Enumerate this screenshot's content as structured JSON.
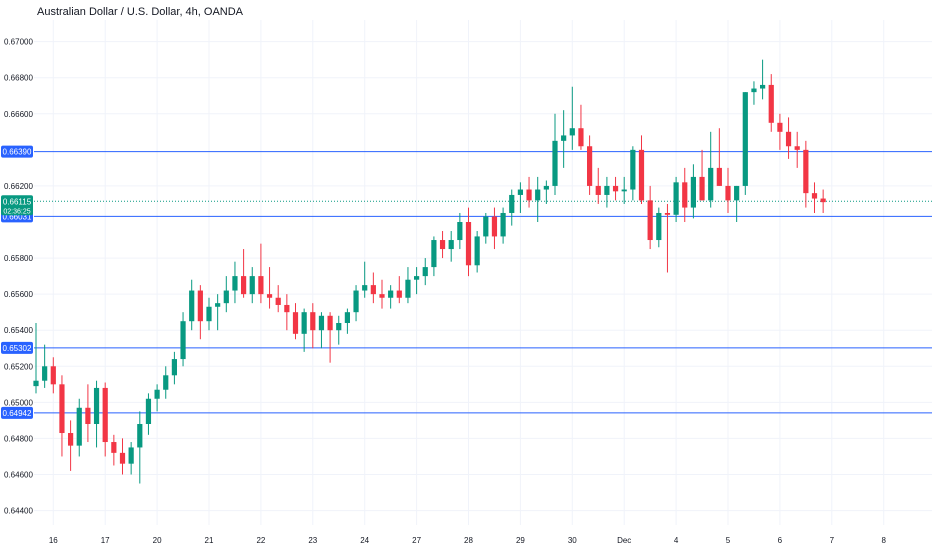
{
  "title": "Australian Dollar / U.S. Dollar, 4h, OANDA",
  "colors": {
    "up": "#089981",
    "down": "#f23645",
    "level_line": "#2962ff",
    "grid": "#f0f3fa",
    "axis_text": "#131722",
    "price_tag": "#089981"
  },
  "chart_data": {
    "type": "candlestick",
    "title": "Australian Dollar / U.S. Dollar, 4h, OANDA",
    "y_ticks": [
      "0.67000",
      "0.66800",
      "0.66600",
      "0.66200",
      "0.65800",
      "0.65600",
      "0.65400",
      "0.65200",
      "0.65000",
      "0.64800",
      "0.64600",
      "0.64400"
    ],
    "y_tick_values": [
      0.67,
      0.668,
      0.666,
      0.662,
      0.658,
      0.656,
      0.654,
      0.652,
      0.65,
      0.648,
      0.646,
      0.644
    ],
    "ylim": [
      0.6432,
      0.6712
    ],
    "x_labels": [
      "16",
      "17",
      "20",
      "21",
      "22",
      "23",
      "24",
      "27",
      "28",
      "29",
      "30",
      "Dec",
      "4",
      "5",
      "6",
      "7",
      "8"
    ],
    "x_label_positions": [
      2,
      8,
      14,
      20,
      26,
      32,
      38,
      44,
      50,
      56,
      62,
      68,
      74,
      80,
      86,
      92,
      98
    ],
    "x_count": 102,
    "levels": [
      {
        "value": 0.6639,
        "label": "0.66390"
      },
      {
        "value": 0.66031,
        "label": "0.66031"
      },
      {
        "value": 0.65302,
        "label": "0.65302"
      },
      {
        "value": 0.64942,
        "label": "0.64942"
      }
    ],
    "current_price": {
      "value": 0.66115,
      "label": "0.66115",
      "countdown": "02:36:25"
    },
    "candles": [
      [
        0.6509,
        0.6544,
        0.6505,
        0.6512
      ],
      [
        0.6512,
        0.6532,
        0.6508,
        0.652
      ],
      [
        0.652,
        0.6525,
        0.6505,
        0.651
      ],
      [
        0.651,
        0.6515,
        0.647,
        0.6483
      ],
      [
        0.6483,
        0.649,
        0.6462,
        0.6476
      ],
      [
        0.6476,
        0.6502,
        0.647,
        0.6497
      ],
      [
        0.6497,
        0.651,
        0.6478,
        0.6488
      ],
      [
        0.6488,
        0.6512,
        0.6475,
        0.6508
      ],
      [
        0.6508,
        0.6511,
        0.647,
        0.6478
      ],
      [
        0.6478,
        0.6482,
        0.6465,
        0.6472
      ],
      [
        0.6472,
        0.648,
        0.646,
        0.6466
      ],
      [
        0.6466,
        0.6478,
        0.646,
        0.6475
      ],
      [
        0.6475,
        0.6495,
        0.6455,
        0.6488
      ],
      [
        0.6488,
        0.6505,
        0.6482,
        0.6502
      ],
      [
        0.6502,
        0.651,
        0.6495,
        0.6507
      ],
      [
        0.6507,
        0.652,
        0.6502,
        0.6515
      ],
      [
        0.6515,
        0.6528,
        0.651,
        0.6524
      ],
      [
        0.6524,
        0.655,
        0.652,
        0.6545
      ],
      [
        0.6545,
        0.6568,
        0.654,
        0.6562
      ],
      [
        0.6562,
        0.6565,
        0.6535,
        0.6545
      ],
      [
        0.6545,
        0.6558,
        0.654,
        0.6553
      ],
      [
        0.6553,
        0.656,
        0.654,
        0.6555
      ],
      [
        0.6555,
        0.657,
        0.655,
        0.6562
      ],
      [
        0.6562,
        0.6578,
        0.6555,
        0.657
      ],
      [
        0.657,
        0.6585,
        0.6558,
        0.656
      ],
      [
        0.656,
        0.6575,
        0.6555,
        0.657
      ],
      [
        0.657,
        0.6588,
        0.6555,
        0.656
      ],
      [
        0.656,
        0.6575,
        0.6552,
        0.6558
      ],
      [
        0.6558,
        0.6565,
        0.655,
        0.6554
      ],
      [
        0.6554,
        0.656,
        0.654,
        0.655
      ],
      [
        0.655,
        0.6555,
        0.6535,
        0.6538
      ],
      [
        0.6538,
        0.6552,
        0.6528,
        0.655
      ],
      [
        0.655,
        0.6555,
        0.653,
        0.654
      ],
      [
        0.654,
        0.655,
        0.653,
        0.6548
      ],
      [
        0.6548,
        0.655,
        0.6522,
        0.654
      ],
      [
        0.654,
        0.6548,
        0.6532,
        0.6544
      ],
      [
        0.6544,
        0.6552,
        0.6538,
        0.655
      ],
      [
        0.655,
        0.6565,
        0.6545,
        0.6562
      ],
      [
        0.6562,
        0.6578,
        0.6558,
        0.6565
      ],
      [
        0.6565,
        0.6572,
        0.6555,
        0.656
      ],
      [
        0.656,
        0.6568,
        0.6552,
        0.6558
      ],
      [
        0.6558,
        0.6565,
        0.6552,
        0.6562
      ],
      [
        0.6562,
        0.657,
        0.6555,
        0.6558
      ],
      [
        0.6558,
        0.6575,
        0.6555,
        0.6568
      ],
      [
        0.6568,
        0.6575,
        0.656,
        0.657
      ],
      [
        0.657,
        0.658,
        0.6565,
        0.6575
      ],
      [
        0.6575,
        0.6592,
        0.657,
        0.659
      ],
      [
        0.659,
        0.6595,
        0.658,
        0.6585
      ],
      [
        0.6585,
        0.6595,
        0.6578,
        0.659
      ],
      [
        0.659,
        0.6605,
        0.6585,
        0.66
      ],
      [
        0.66,
        0.6608,
        0.657,
        0.6576
      ],
      [
        0.6576,
        0.6595,
        0.6572,
        0.6592
      ],
      [
        0.6592,
        0.6605,
        0.6588,
        0.6603
      ],
      [
        0.6603,
        0.6608,
        0.6585,
        0.6592
      ],
      [
        0.6592,
        0.6608,
        0.6588,
        0.6605
      ],
      [
        0.6605,
        0.6618,
        0.6598,
        0.6615
      ],
      [
        0.6615,
        0.6622,
        0.6605,
        0.6618
      ],
      [
        0.6618,
        0.6625,
        0.6608,
        0.6612
      ],
      [
        0.6612,
        0.6625,
        0.66,
        0.6618
      ],
      [
        0.6618,
        0.6623,
        0.661,
        0.662
      ],
      [
        0.662,
        0.666,
        0.6615,
        0.6645
      ],
      [
        0.6645,
        0.6662,
        0.663,
        0.6648
      ],
      [
        0.6648,
        0.6675,
        0.664,
        0.6652
      ],
      [
        0.6652,
        0.6665,
        0.664,
        0.6642
      ],
      [
        0.6642,
        0.6648,
        0.6615,
        0.662
      ],
      [
        0.662,
        0.663,
        0.661,
        0.6615
      ],
      [
        0.6615,
        0.6625,
        0.6608,
        0.662
      ],
      [
        0.662,
        0.6625,
        0.6612,
        0.6617
      ],
      [
        0.6617,
        0.6625,
        0.661,
        0.6618
      ],
      [
        0.6618,
        0.6642,
        0.6612,
        0.664
      ],
      [
        0.664,
        0.6648,
        0.661,
        0.6612
      ],
      [
        0.6612,
        0.662,
        0.6585,
        0.659
      ],
      [
        0.659,
        0.6608,
        0.6586,
        0.6605
      ],
      [
        0.6605,
        0.661,
        0.6572,
        0.6604
      ],
      [
        0.6604,
        0.6625,
        0.66,
        0.6622
      ],
      [
        0.6622,
        0.663,
        0.66,
        0.6608
      ],
      [
        0.6608,
        0.6632,
        0.6602,
        0.6625
      ],
      [
        0.6625,
        0.664,
        0.6612,
        0.6612
      ],
      [
        0.6612,
        0.665,
        0.6608,
        0.663
      ],
      [
        0.663,
        0.6652,
        0.662,
        0.662
      ],
      [
        0.662,
        0.663,
        0.6605,
        0.6612
      ],
      [
        0.6612,
        0.662,
        0.66,
        0.662
      ],
      [
        0.662,
        0.6672,
        0.6615,
        0.6672
      ],
      [
        0.6672,
        0.6678,
        0.6665,
        0.6674
      ],
      [
        0.6674,
        0.669,
        0.6668,
        0.6676
      ],
      [
        0.6676,
        0.6682,
        0.665,
        0.6655
      ],
      [
        0.6655,
        0.666,
        0.664,
        0.665
      ],
      [
        0.665,
        0.6658,
        0.6635,
        0.6642
      ],
      [
        0.6642,
        0.665,
        0.663,
        0.664
      ],
      [
        0.664,
        0.6645,
        0.6608,
        0.6616
      ],
      [
        0.6616,
        0.6622,
        0.6605,
        0.6613
      ],
      [
        0.6613,
        0.6618,
        0.6605,
        0.6611
      ]
    ]
  }
}
